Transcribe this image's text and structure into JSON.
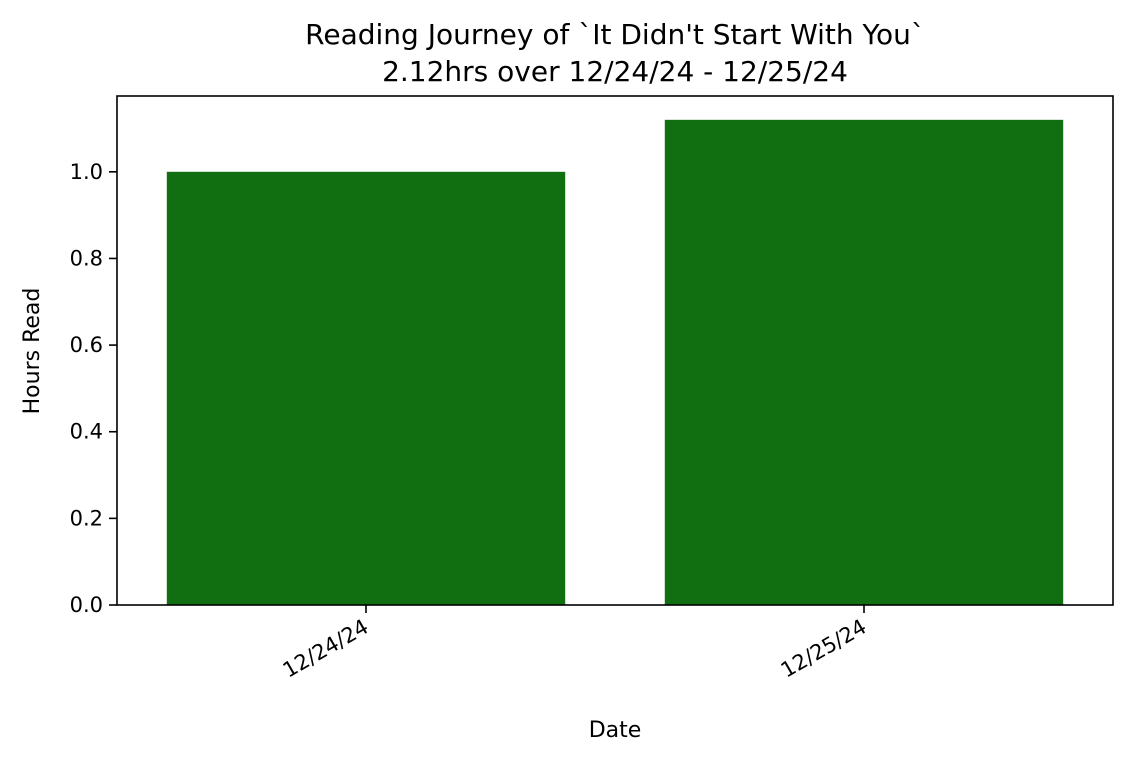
{
  "chart_data": {
    "type": "bar",
    "title": "Reading Journey of `It Didn't Start With You`",
    "subtitle": "2.12hrs over 12/24/24 - 12/25/24",
    "xlabel": "Date",
    "ylabel": "Hours Read",
    "categories": [
      "12/24/24",
      "12/25/24"
    ],
    "values": [
      1.0,
      1.12
    ],
    "ylim": [
      0,
      1.175
    ],
    "yticks": [
      "0.0",
      "0.2",
      "0.4",
      "0.6",
      "0.8",
      "1.0"
    ],
    "grid": false,
    "legend": "none",
    "bar_color": "#116f11"
  }
}
